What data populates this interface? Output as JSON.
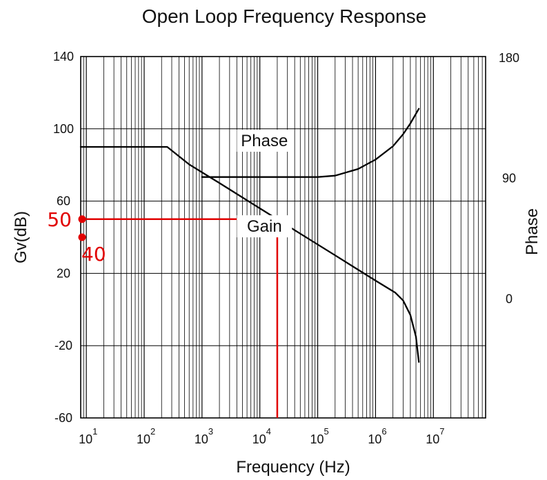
{
  "chart_data": {
    "type": "line",
    "title": "Open Loop Frequency Response",
    "xlabel": "Frequency (Hz)",
    "ylabel": "Gv(dB)",
    "y2label": "Phase",
    "xscale": "log",
    "xlim": [
      8,
      80000000
    ],
    "ylim": [
      -60,
      140
    ],
    "y2lim": [
      -90,
      180
    ],
    "grid": true,
    "x_ticks": [
      {
        "base": "10",
        "exp": "1",
        "value": 10
      },
      {
        "base": "10",
        "exp": "2",
        "value": 100
      },
      {
        "base": "10",
        "exp": "3",
        "value": 1000
      },
      {
        "base": "10",
        "exp": "4",
        "value": 10000
      },
      {
        "base": "10",
        "exp": "5",
        "value": 100000
      },
      {
        "base": "10",
        "exp": "6",
        "value": 1000000
      },
      {
        "base": "10",
        "exp": "7",
        "value": 10000000
      }
    ],
    "y_ticks": [
      {
        "label": "140",
        "value": 140
      },
      {
        "label": "100",
        "value": 100
      },
      {
        "label": "60",
        "value": 60
      },
      {
        "label": "20",
        "value": 20
      },
      {
        "label": "-20",
        "value": -20
      },
      {
        "label": "-60",
        "value": -60
      }
    ],
    "y2_ticks": [
      {
        "label": "180",
        "value": 180
      },
      {
        "label": "90",
        "value": 90
      },
      {
        "label": "0",
        "value": 0
      }
    ],
    "series": [
      {
        "name": "Gain",
        "axis": "left",
        "x": [
          8,
          250,
          600,
          2000,
          10000,
          50000,
          200000,
          1000000,
          2200000,
          3000000,
          4000000,
          5000000,
          5600000
        ],
        "y": [
          90,
          90,
          80.3,
          70,
          56,
          42,
          30,
          16,
          9.3,
          5,
          -3,
          -15,
          -29
        ]
      },
      {
        "name": "Phase",
        "axis": "right",
        "x": [
          1000,
          10000,
          100000,
          200000,
          500000,
          1000000,
          2000000,
          3000000,
          4000000,
          5600000
        ],
        "y": [
          90,
          90,
          90,
          91,
          96,
          103,
          113,
          122,
          130,
          141
        ]
      }
    ],
    "annotations": [
      {
        "text": "Phase",
        "x": 12000,
        "y": 113
      },
      {
        "text": "Gain",
        "x": 12000,
        "y": 43
      }
    ],
    "markers": [
      {
        "label": "50",
        "value": 50,
        "label_side": "left"
      },
      {
        "label": "40",
        "value": 40,
        "label_side": "below"
      }
    ],
    "guide": {
      "freq": 20000,
      "gain": 50
    },
    "colors": {
      "curve": "#000000",
      "marker": "#e10000",
      "grid": "#000000"
    }
  }
}
